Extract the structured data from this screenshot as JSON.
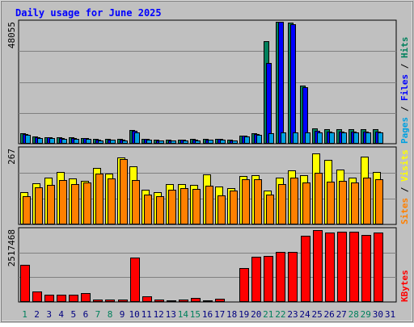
{
  "chart_data": [
    {
      "type": "bar",
      "title": "Daily usage for June 2025",
      "categories": [
        "1",
        "2",
        "3",
        "4",
        "5",
        "6",
        "7",
        "8",
        "9",
        "10",
        "11",
        "12",
        "13",
        "14",
        "15",
        "16",
        "17",
        "18",
        "19",
        "20",
        "21",
        "22",
        "23",
        "24",
        "25",
        "26",
        "27",
        "28",
        "29",
        "30",
        "31"
      ],
      "weekend_days": [
        "1",
        "7",
        "8",
        "14",
        "15",
        "21",
        "22",
        "28",
        "29"
      ],
      "ylabel_parts": [
        "Pages",
        "Files",
        "Hits"
      ],
      "ymax_label": "48055",
      "ylim": [
        0,
        48055
      ],
      "series": [
        {
          "name": "Hits",
          "color": "#00805c",
          "values": [
            4200,
            2700,
            2600,
            2500,
            2400,
            2300,
            1800,
            1900,
            1800,
            5400,
            2000,
            1600,
            1600,
            1700,
            1800,
            1900,
            2000,
            1600,
            3200,
            4200,
            40000,
            47500,
            47000,
            22500,
            5900,
            5800,
            5800,
            5800,
            5800,
            5800,
            0
          ]
        },
        {
          "name": "Files",
          "color": "#0000ff",
          "values": [
            3800,
            2500,
            2400,
            2300,
            2200,
            2100,
            1600,
            1700,
            1600,
            5000,
            1800,
            1400,
            1400,
            1500,
            1600,
            1700,
            1800,
            1400,
            3000,
            3800,
            31500,
            47500,
            46500,
            22000,
            4900,
            4800,
            4800,
            4800,
            4800,
            4800,
            0
          ]
        },
        {
          "name": "Pages",
          "color": "#00a0e0",
          "values": [
            3300,
            2200,
            2100,
            2000,
            1900,
            1800,
            1400,
            1500,
            1400,
            4500,
            1600,
            1200,
            1200,
            1300,
            1400,
            1500,
            1600,
            1200,
            2700,
            3300,
            4000,
            4300,
            4300,
            4300,
            4400,
            4400,
            4400,
            4400,
            4400,
            4400,
            0
          ]
        }
      ],
      "grid": true
    },
    {
      "type": "bar",
      "ylabel_parts": [
        "Sites",
        "Visits"
      ],
      "ymax_label": "267",
      "ylim": [
        0,
        267
      ],
      "series": [
        {
          "name": "Visits",
          "color": "#ffff00",
          "values": [
            110,
            142,
            162,
            180,
            158,
            150,
            196,
            175,
            230,
            200,
            120,
            112,
            138,
            140,
            136,
            172,
            130,
            124,
            166,
            170,
            118,
            162,
            186,
            170,
            246,
            222,
            190,
            162,
            234,
            182,
            0
          ]
        },
        {
          "name": "Sites",
          "color": "#ff8000",
          "values": [
            96,
            128,
            136,
            152,
            140,
            144,
            176,
            158,
            224,
            154,
            102,
            96,
            120,
            126,
            122,
            134,
            100,
            116,
            156,
            156,
            104,
            138,
            162,
            144,
            178,
            148,
            150,
            144,
            162,
            156,
            0
          ]
        }
      ],
      "grid": true
    },
    {
      "type": "bar",
      "ylabel_parts": [
        "KBytes"
      ],
      "ymax_label": "2517468",
      "ylim": [
        0,
        2517468
      ],
      "series": [
        {
          "name": "KBytes",
          "color": "#ff0000",
          "values": [
            1250000,
            360000,
            240000,
            240000,
            240000,
            290000,
            70000,
            90000,
            80000,
            1500000,
            200000,
            90000,
            50000,
            70000,
            140000,
            60000,
            120000,
            40000,
            1150000,
            1540000,
            1570000,
            1700000,
            1700000,
            2250000,
            2430000,
            2350000,
            2370000,
            2370000,
            2270000,
            2340000,
            0
          ]
        }
      ],
      "grid": true
    }
  ],
  "colors": {
    "title": "#0000ff",
    "day_label_weekday": "#000080",
    "day_label_weekend": "#00805c",
    "plot_bg": "#c0c0c0",
    "grid": "#808080"
  }
}
